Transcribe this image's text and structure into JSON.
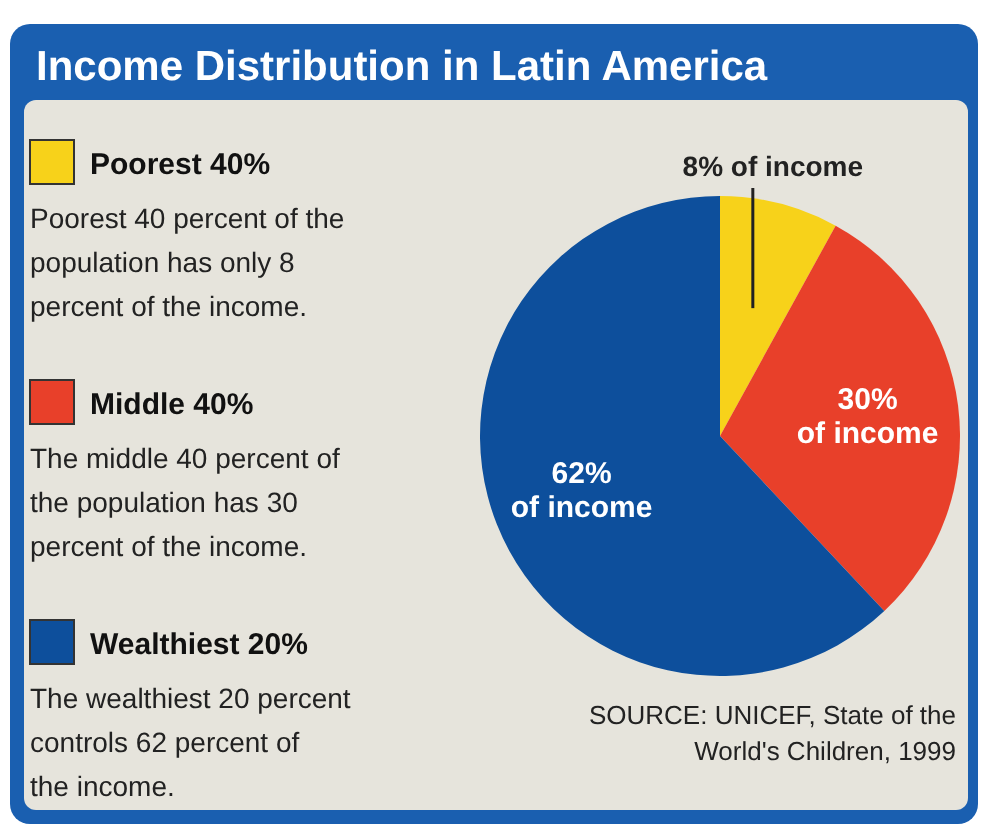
{
  "chart_data": {
    "type": "pie",
    "title": "Income Distribution in Latin America",
    "categories": [
      "Poorest 40%",
      "Middle 40%",
      "Wealthiest 20%"
    ],
    "values": [
      8,
      30,
      62
    ],
    "colors": [
      "#f7d21a",
      "#e8402a",
      "#0d4f9c"
    ],
    "value_labels": [
      "8% of income",
      "30% of income",
      "62% of income"
    ],
    "legend": "left",
    "annotations": [
      "Poorest 40 percent of the population has only 8 percent of the income.",
      "The middle 40 percent of the population has 30 percent of the income.",
      "The wealthiest 20 percent controls 62 percent of the income.",
      "SOURCE: UNICEF, State of the World's Children, 1999"
    ]
  }
}
